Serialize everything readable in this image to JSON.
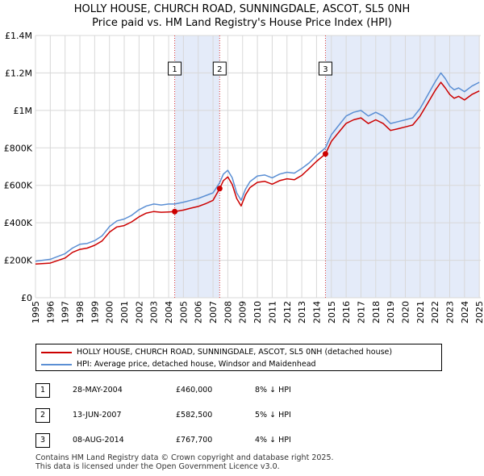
{
  "title_line1": "HOLLY HOUSE, CHURCH ROAD, SUNNINGDALE, ASCOT, SL5 0NH",
  "title_line2": "Price paid vs. HM Land Registry's House Price Index (HPI)",
  "legend": {
    "property": "HOLLY HOUSE, CHURCH ROAD, SUNNINGDALE, ASCOT, SL5 0NH (detached house)",
    "hpi": "HPI: Average price, detached house, Windsor and Maidenhead"
  },
  "sales": [
    {
      "num": "1",
      "date": "28-MAY-2004",
      "price": "£460,000",
      "hpi": "8% ↓ HPI"
    },
    {
      "num": "2",
      "date": "13-JUN-2007",
      "price": "£582,500",
      "hpi": "5% ↓ HPI"
    },
    {
      "num": "3",
      "date": "08-AUG-2014",
      "price": "£767,700",
      "hpi": "4% ↓ HPI"
    }
  ],
  "footer_line1": "Contains HM Land Registry data © Crown copyright and database right 2025.",
  "footer_line2": "This data is licensed under the Open Government Licence v3.0.",
  "colors": {
    "property": "#cc0000",
    "hpi": "#5b8fd4",
    "shade": "#dde6f7",
    "grid": "#d8d8d8"
  },
  "chart_data": {
    "type": "line",
    "title": "Price paid vs. HM Land Registry's House Price Index (HPI)",
    "xlabel": "",
    "ylabel": "",
    "xlim": [
      1995,
      2025.1
    ],
    "ylim": [
      0,
      1400000
    ],
    "x_ticks": [
      1995,
      1996,
      1997,
      1998,
      1999,
      2000,
      2001,
      2002,
      2003,
      2004,
      2005,
      2006,
      2007,
      2008,
      2009,
      2010,
      2011,
      2012,
      2013,
      2014,
      2015,
      2016,
      2017,
      2018,
      2019,
      2020,
      2021,
      2022,
      2023,
      2024,
      2025
    ],
    "y_ticks": [
      0,
      200000,
      400000,
      600000,
      800000,
      1000000,
      1200000,
      1400000
    ],
    "y_tick_labels": [
      "£0",
      "£200K",
      "£400K",
      "£600K",
      "£800K",
      "£1M",
      "£1.2M",
      "£1.4M"
    ],
    "shaded_ranges": [
      [
        2004.41,
        2007.45
      ],
      [
        2014.6,
        2025.0
      ]
    ],
    "transactions": [
      {
        "label": "1",
        "x": 2004.41,
        "price": 460000
      },
      {
        "label": "2",
        "x": 2007.45,
        "price": 582500
      },
      {
        "label": "3",
        "x": 2014.6,
        "price": 767700
      }
    ],
    "series": [
      {
        "name": "HPI: Average price, detached house, Windsor and Maidenhead",
        "x": [
          1995.0,
          1996.0,
          1997.0,
          1997.5,
          1998.0,
          1998.5,
          1999.0,
          1999.5,
          2000.0,
          2000.5,
          2001.0,
          2001.5,
          2002.0,
          2002.5,
          2003.0,
          2003.5,
          2004.0,
          2004.41,
          2005.0,
          2005.5,
          2006.0,
          2006.5,
          2007.0,
          2007.45,
          2007.7,
          2008.0,
          2008.3,
          2008.6,
          2008.9,
          2009.2,
          2009.5,
          2010.0,
          2010.5,
          2011.0,
          2011.5,
          2012.0,
          2012.5,
          2013.0,
          2013.5,
          2014.0,
          2014.6,
          2015.0,
          2015.5,
          2016.0,
          2016.5,
          2017.0,
          2017.5,
          2018.0,
          2018.5,
          2019.0,
          2019.5,
          2020.0,
          2020.5,
          2021.0,
          2021.5,
          2022.0,
          2022.4,
          2022.7,
          2023.0,
          2023.3,
          2023.6,
          2024.0,
          2024.5,
          2025.0
        ],
        "values": [
          195000,
          205000,
          235000,
          265000,
          285000,
          290000,
          305000,
          330000,
          380000,
          410000,
          420000,
          440000,
          470000,
          490000,
          500000,
          495000,
          500000,
          500000,
          510000,
          520000,
          530000,
          545000,
          560000,
          614000,
          660000,
          680000,
          640000,
          560000,
          520000,
          580000,
          620000,
          650000,
          655000,
          640000,
          660000,
          670000,
          665000,
          690000,
          720000,
          760000,
          800000,
          870000,
          920000,
          970000,
          990000,
          1000000,
          970000,
          990000,
          970000,
          930000,
          940000,
          950000,
          960000,
          1010000,
          1080000,
          1150000,
          1200000,
          1170000,
          1130000,
          1110000,
          1120000,
          1100000,
          1130000,
          1150000
        ]
      },
      {
        "name": "HOLLY HOUSE, CHURCH ROAD, SUNNINGDALE, ASCOT, SL5 0NH (detached house)",
        "x": [
          1995.0,
          1996.0,
          1997.0,
          1997.5,
          1998.0,
          1998.5,
          1999.0,
          1999.5,
          2000.0,
          2000.5,
          2001.0,
          2001.5,
          2002.0,
          2002.5,
          2003.0,
          2003.5,
          2004.0,
          2004.41,
          2005.0,
          2005.5,
          2006.0,
          2006.5,
          2007.0,
          2007.45,
          2007.7,
          2008.0,
          2008.3,
          2008.6,
          2008.9,
          2009.2,
          2009.5,
          2010.0,
          2010.5,
          2011.0,
          2011.5,
          2012.0,
          2012.5,
          2013.0,
          2013.5,
          2014.0,
          2014.6,
          2015.0,
          2015.5,
          2016.0,
          2016.5,
          2017.0,
          2017.5,
          2018.0,
          2018.5,
          2019.0,
          2019.5,
          2020.0,
          2020.5,
          2021.0,
          2021.5,
          2022.0,
          2022.4,
          2022.7,
          2023.0,
          2023.3,
          2023.6,
          2024.0,
          2024.5,
          2025.0
        ],
        "values": [
          180000,
          185000,
          212000,
          242000,
          258000,
          265000,
          280000,
          303000,
          350000,
          378000,
          385000,
          405000,
          432000,
          452000,
          460000,
          456000,
          458000,
          460000,
          468000,
          478000,
          487000,
          502000,
          520000,
          582500,
          625000,
          645000,
          605000,
          530000,
          490000,
          550000,
          588000,
          616000,
          621000,
          606000,
          625000,
          635000,
          630000,
          653000,
          690000,
          728000,
          767700,
          835000,
          883000,
          931000,
          950000,
          960000,
          930000,
          950000,
          930000,
          893000,
          902000,
          912000,
          922000,
          970000,
          1037000,
          1104000,
          1150000,
          1120000,
          1085000,
          1065000,
          1075000,
          1056000,
          1085000,
          1104000
        ]
      }
    ]
  }
}
